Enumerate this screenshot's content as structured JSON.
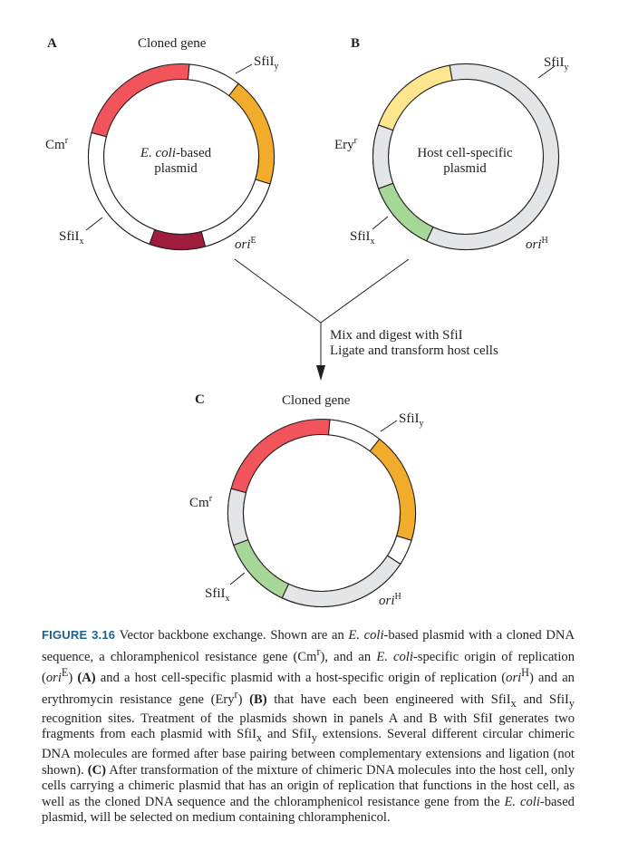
{
  "colors": {
    "cloned_gene": "#f0ac2a",
    "cm_resistance": "#f1545a",
    "ori_e": "#a01c3d",
    "host_backbone": "#e3e5e7",
    "ery_resistance": "#fde68e",
    "ori_h": "#a6d796",
    "ecoli_backbone": "#ffffff",
    "outline": "#231f20",
    "caption_label": "#1f5f8f"
  },
  "panel_a": {
    "letter": "A",
    "cloned_gene": "Cloned gene",
    "sfi_y": "SfiI",
    "sfi_y_sub": "y",
    "cm": "Cm",
    "cm_sup": "r",
    "sfi_x": "SfiI",
    "sfi_x_sub": "x",
    "ori": "ori",
    "ori_sup": "E",
    "center_line1_italic": "E. coli",
    "center_line1_rest": "-based",
    "center_line2": "plasmid"
  },
  "panel_b": {
    "letter": "B",
    "sfi_y": "SfiI",
    "sfi_y_sub": "y",
    "ery": "Ery",
    "ery_sup": "r",
    "sfi_x": "SfiI",
    "sfi_x_sub": "x",
    "ori": "ori",
    "ori_sup": "H",
    "center_line1": "Host cell-specific",
    "center_line2": "plasmid"
  },
  "process": {
    "step1": "Mix and digest with SfiI",
    "step2": "Ligate and transform host cells"
  },
  "panel_c": {
    "letter": "C",
    "cloned_gene": "Cloned gene",
    "sfi_y": "SfiI",
    "sfi_y_sub": "y",
    "cm": "Cm",
    "cm_sup": "r",
    "sfi_x": "SfiI",
    "sfi_x_sub": "x",
    "ori": "ori",
    "ori_sup": "H"
  },
  "caption": {
    "label": "FIGURE 3.16",
    "title": "Vector backbone exchange.",
    "t1": "Shown are an",
    "ecoli": "E. coli",
    "t2": "-based plasmid with a cloned DNA sequence, a chloramphenicol resistance gene (Cm",
    "r": "r",
    "t3": "), and an",
    "t4": "-specific origin of replication (",
    "ori": "ori",
    "E": "E",
    "t5": ")",
    "A": "(A)",
    "t6": "and a host cell-specific plasmid with a host-specific origin of replication (",
    "H": "H",
    "t7": ") and an erythromycin resistance gene (Ery",
    "t8": ")",
    "B": "(B)",
    "t9": "that have each been engineered with SfiI",
    "x": "x",
    "t10": "and SfiI",
    "y": "y",
    "t11": "recognition sites. Treatment of the plasmids shown in panels A and B with SfiI generates two fragments from each plasmid with SfiI",
    "t12": "and SfiI",
    "t13": "extensions. Several different circular chimeric DNA molecules are formed after base pairing between complementary extensions and ligation (not shown).",
    "C": "(C)",
    "t14": "After transformation of the mixture of chimeric DNA molecules into the host cell, only cells carrying a chimeric plasmid that has an origin of replication that functions in the host cell, as well as the cloned DNA sequence and the chloramphenicol resistance gene from the",
    "t15": "-based plasmid, will be selected on medium containing chloramphenicol."
  }
}
